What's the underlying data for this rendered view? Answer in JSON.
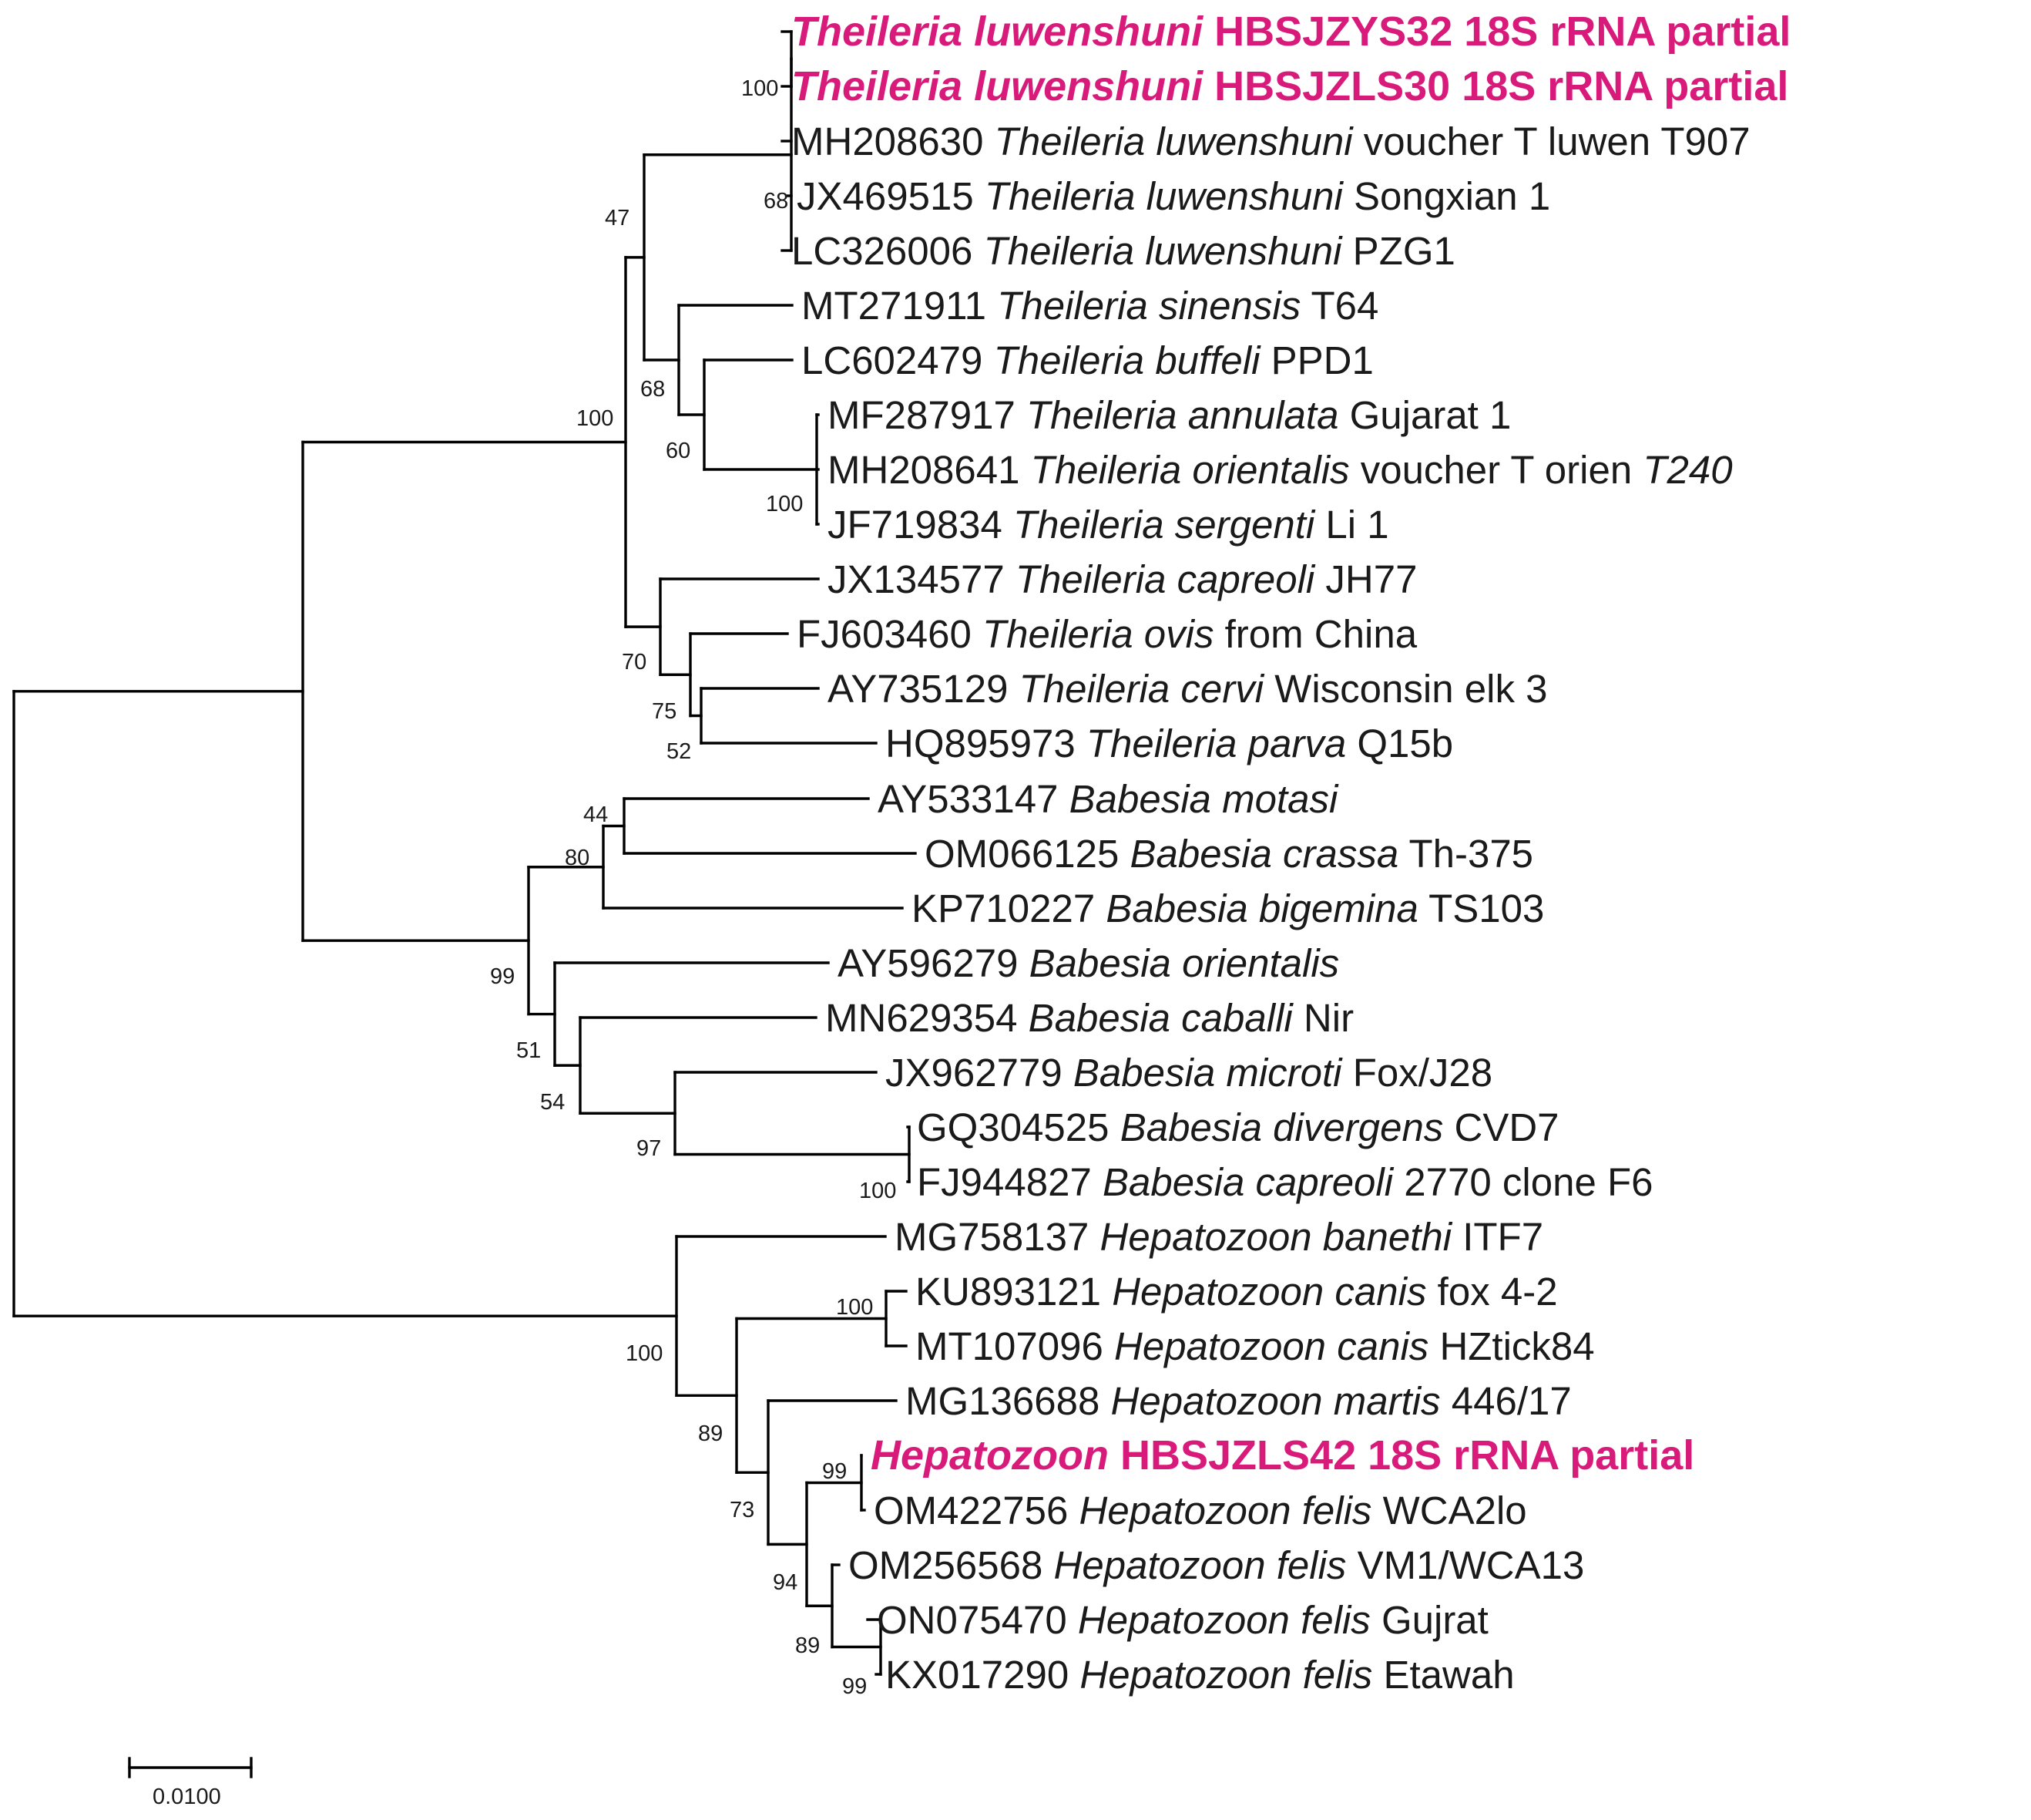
{
  "figure": {
    "type": "phylogenetic_tree",
    "method_hint": "18S rRNA",
    "highlight_color": "#d81b7a"
  },
  "taxa": [
    {
      "id": "t1",
      "accession": "",
      "species": "Theileria luwenshuni",
      "strain": "HBSJZYS32 18S rRNA partial",
      "highlight": true
    },
    {
      "id": "t2",
      "accession": "",
      "species": "Theileria luwenshuni",
      "strain": "HBSJZLS30 18S rRNA partial",
      "highlight": true
    },
    {
      "id": "t3",
      "accession": "MH208630",
      "species": "Theileria luwenshuni",
      "strain": "voucher T luwen T907"
    },
    {
      "id": "t4",
      "accession": "JX469515",
      "species": "Theileria luwenshuni",
      "strain": "Songxian 1"
    },
    {
      "id": "t5",
      "accession": "LC326006",
      "species": "Theileria luwenshuni",
      "strain": "PZG1"
    },
    {
      "id": "t6",
      "accession": "MT271911",
      "species": "Theileria sinensis",
      "strain": "T64"
    },
    {
      "id": "t7",
      "accession": "LC602479",
      "species": "Theileria buffeli",
      "strain": "PPD1"
    },
    {
      "id": "t8",
      "accession": "MF287917",
      "species": "Theileria annulata",
      "strain": "Gujarat 1"
    },
    {
      "id": "t9",
      "accession": "MH208641",
      "species": "Theileria orientalis",
      "strain": "voucher T orien",
      "strain_italic_suffix": "T240"
    },
    {
      "id": "t10",
      "accession": "JF719834",
      "species": "Theileria sergenti",
      "strain": "Li 1"
    },
    {
      "id": "t11",
      "accession": "JX134577",
      "species": "Theileria capreoli",
      "strain": "JH77"
    },
    {
      "id": "t12",
      "accession": "FJ603460",
      "species": "Theileria ovis",
      "strain": "from China"
    },
    {
      "id": "t13",
      "accession": "AY735129",
      "species": "Theileria cervi",
      "strain": "Wisconsin elk 3"
    },
    {
      "id": "t14",
      "accession": "HQ895973",
      "species": "Theileria parva",
      "strain": "Q15b"
    },
    {
      "id": "t15",
      "accession": "AY533147",
      "species": "Babesia motasi",
      "strain": ""
    },
    {
      "id": "t16",
      "accession": "OM066125",
      "species": "Babesia crassa",
      "strain": "Th-375"
    },
    {
      "id": "t17",
      "accession": "KP710227",
      "species": "Babesia bigemina",
      "strain": "TS103"
    },
    {
      "id": "t18",
      "accession": "AY596279",
      "species": "Babesia orientalis",
      "strain": ""
    },
    {
      "id": "t19",
      "accession": "MN629354",
      "species": "Babesia caballi",
      "strain": "Nir"
    },
    {
      "id": "t20",
      "accession": "JX962779",
      "species": "Babesia microti",
      "strain": "Fox/J28"
    },
    {
      "id": "t21",
      "accession": "GQ304525",
      "species": "Babesia divergens",
      "strain": "CVD7"
    },
    {
      "id": "t22",
      "accession": "FJ944827",
      "species": "Babesia capreoli",
      "strain": "2770 clone F6"
    },
    {
      "id": "t23",
      "accession": "MG758137",
      "species": "Hepatozoon banethi",
      "strain": "ITF7"
    },
    {
      "id": "t24",
      "accession": "KU893121",
      "species": "Hepatozoon canis",
      "strain": "fox 4-2"
    },
    {
      "id": "t25",
      "accession": "MT107096",
      "species": "Hepatozoon canis",
      "strain": "HZtick84"
    },
    {
      "id": "t26",
      "accession": "MG136688",
      "species": "Hepatozoon martis",
      "strain": "446/17"
    },
    {
      "id": "t27",
      "accession": "",
      "species": "Hepatozoon",
      "strain": "HBSJZLS42 18S rRNA partial",
      "highlight": true
    },
    {
      "id": "t28",
      "accession": "OM422756",
      "species": "Hepatozoon felis",
      "strain": "WCA2lo"
    },
    {
      "id": "t29",
      "accession": "OM256568",
      "species": "Hepatozoon felis",
      "strain": "VM1/WCA13"
    },
    {
      "id": "t30",
      "accession": "ON075470",
      "species": "Hepatozoon felis",
      "strain": "Gujrat"
    },
    {
      "id": "t31",
      "accession": "KX017290",
      "species": "Hepatozoon felis",
      "strain": "Etawah"
    }
  ],
  "bootstrap": {
    "luwenshuni_inner": "100",
    "luwenshuni_clade": "68",
    "theileria_a": "47",
    "theileria_core": "100",
    "sinensis_group": "68",
    "buffeli_group": "60",
    "annulata_group": "100",
    "capreoli_group": "70",
    "ovis_group": "75",
    "cervi_parva": "52",
    "motasi_crassa": "44",
    "motasi_bigemina": "80",
    "babesia_all": "99",
    "orientalis_group": "51",
    "caballi_group": "54",
    "microti_group": "97",
    "divergens_capreoli": "100",
    "hepatozoon_all": "100",
    "canis_pair": "100",
    "canis_felis": "89",
    "martis_felis": "73",
    "felis_group": "94",
    "hbs_wca2lo": "99",
    "felis_inner": "89",
    "gujrat_etawah": "99"
  },
  "scale_bar": {
    "value": 0.01,
    "label": "0.0100"
  }
}
